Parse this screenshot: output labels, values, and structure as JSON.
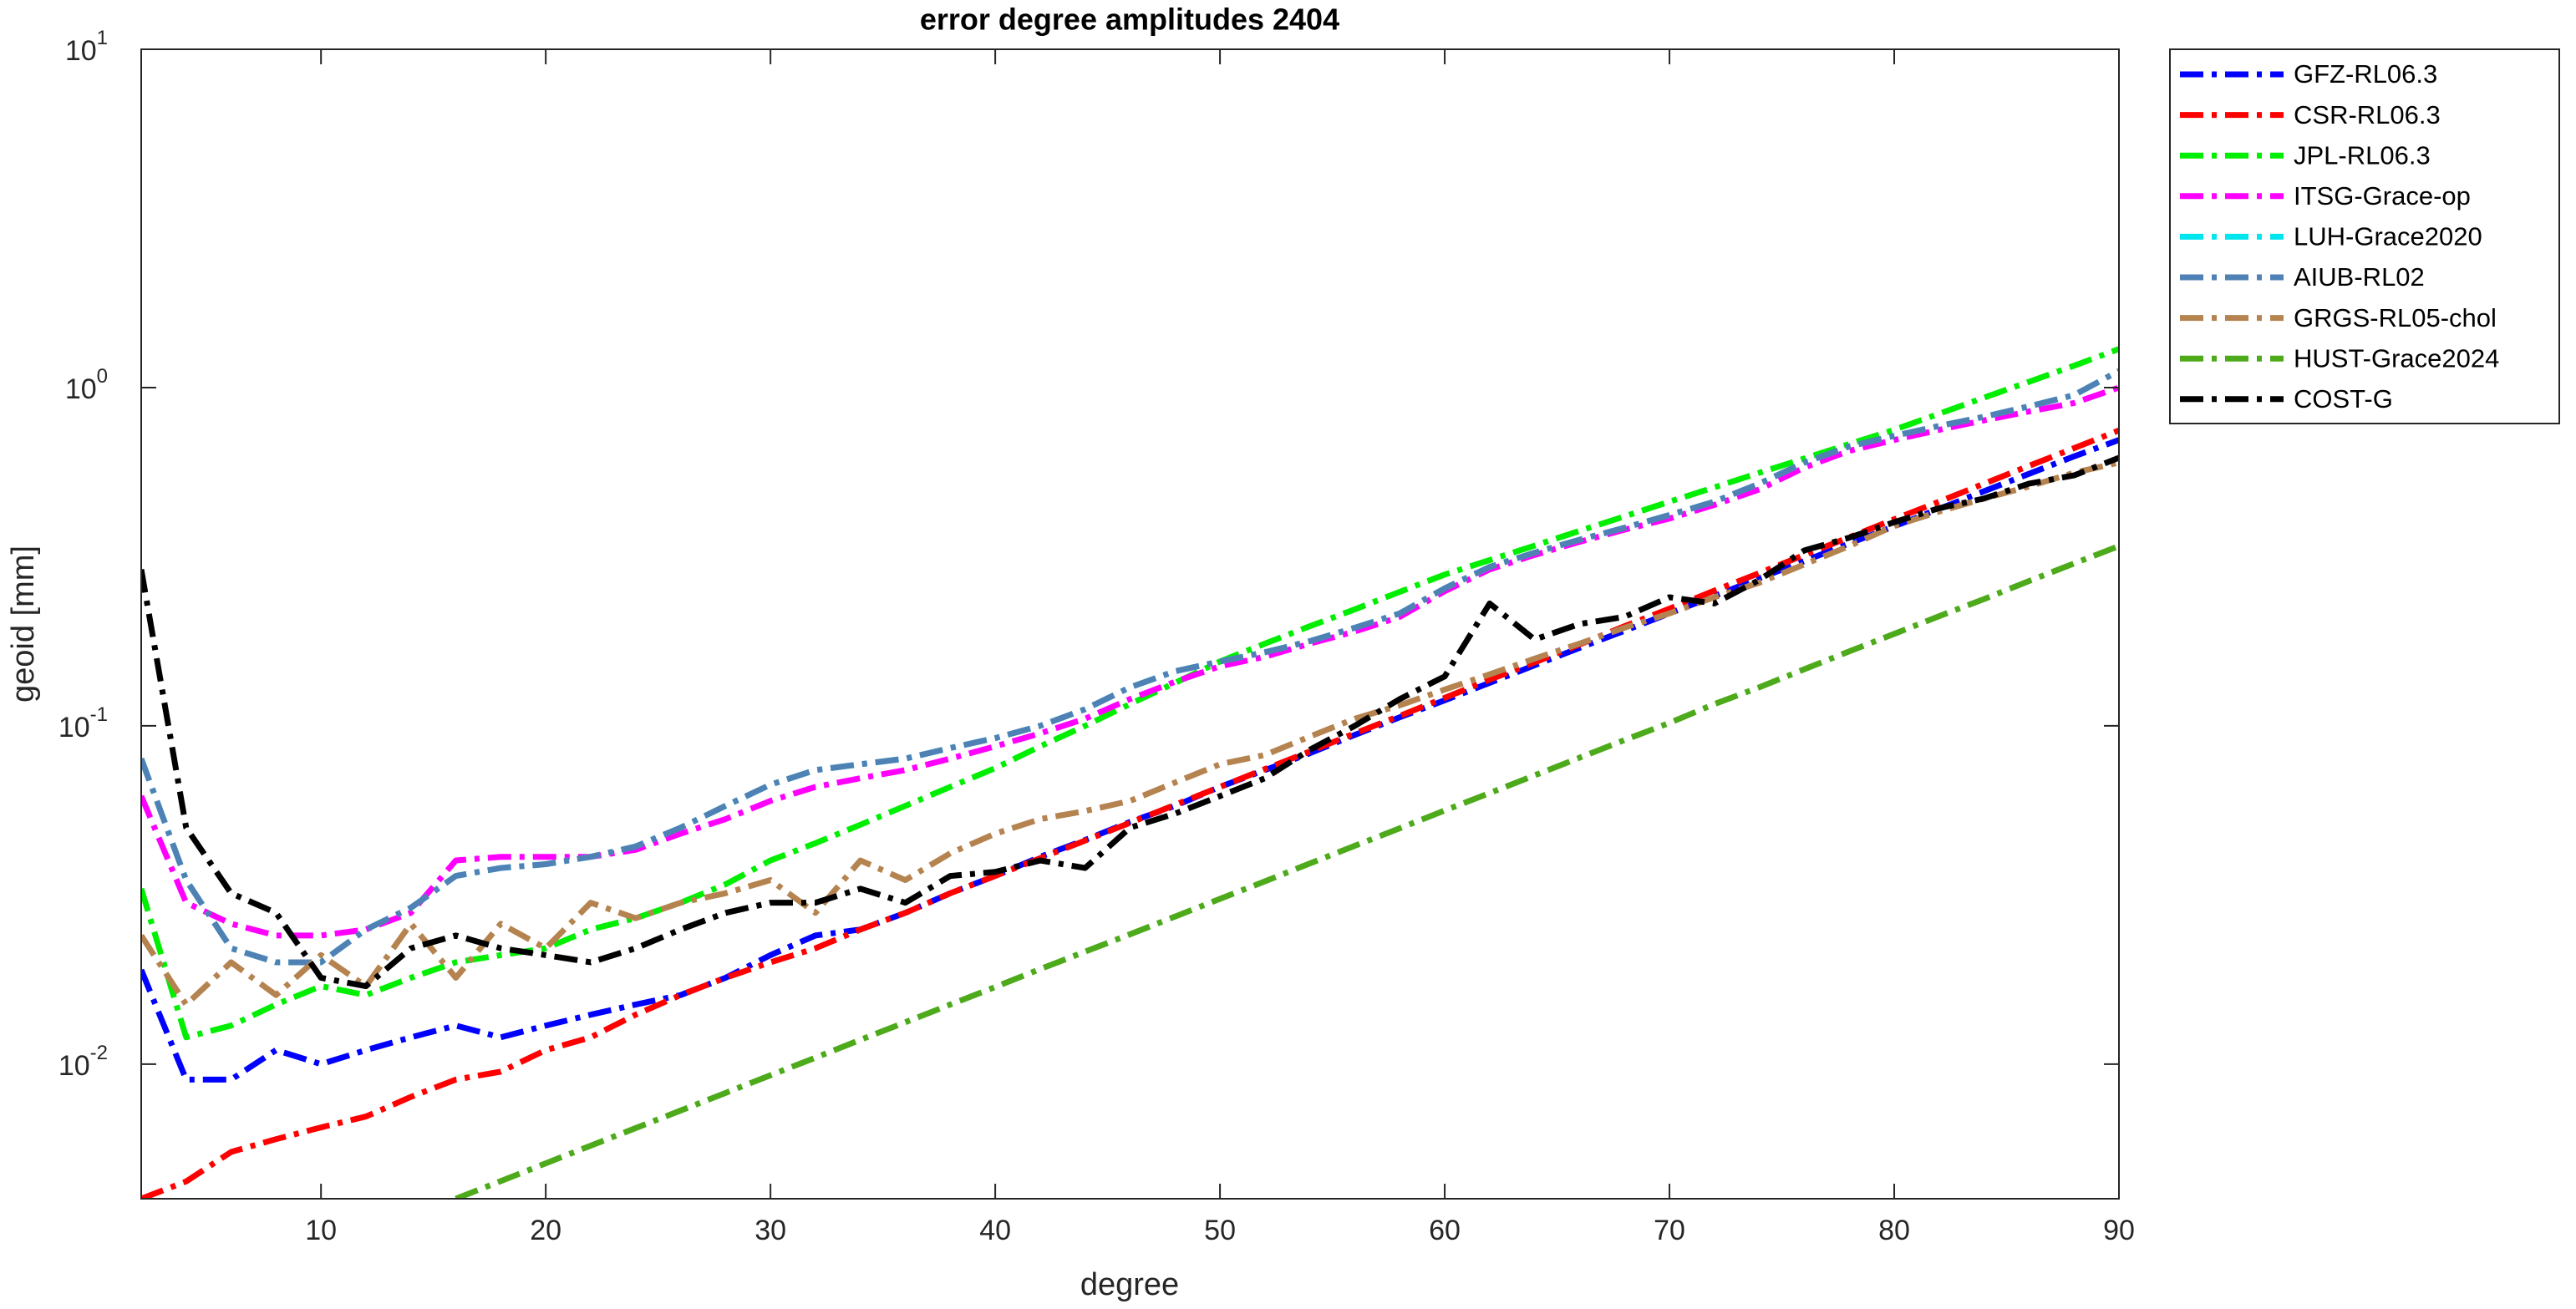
{
  "chart_data": {
    "type": "line",
    "title": "error degree amplitudes 2404",
    "xlabel": "degree",
    "ylabel": "geoid [mm]",
    "log_y": true,
    "grid": false,
    "legend": "outside-top-right",
    "xlim": [
      2,
      90
    ],
    "ylim": [
      0.004,
      10
    ],
    "xticks": [
      10,
      20,
      30,
      40,
      50,
      60,
      70,
      80,
      90
    ],
    "yticks": [
      {
        "value": 0.01,
        "label": "10^{-2}"
      },
      {
        "value": 0.1,
        "label": "10^{-1}"
      },
      {
        "value": 1,
        "label": "10^{0}"
      },
      {
        "value": 10,
        "label": "10^{1}"
      }
    ],
    "x": [
      2,
      4,
      6,
      8,
      10,
      12,
      14,
      16,
      18,
      20,
      22,
      24,
      26,
      28,
      30,
      32,
      34,
      36,
      38,
      40,
      42,
      44,
      46,
      48,
      50,
      52,
      54,
      56,
      58,
      60,
      62,
      64,
      66,
      68,
      70,
      72,
      74,
      76,
      78,
      80,
      82,
      84,
      86,
      88,
      90
    ],
    "series": [
      {
        "name": "GFZ-RL06.3",
        "color": "#0000ff",
        "values": [
          0.019,
          0.009,
          0.009,
          0.011,
          0.01,
          0.011,
          0.012,
          0.013,
          0.012,
          0.013,
          0.014,
          0.015,
          0.016,
          0.018,
          0.021,
          0.024,
          0.025,
          0.028,
          0.032,
          0.036,
          0.041,
          0.046,
          0.052,
          0.058,
          0.066,
          0.074,
          0.083,
          0.094,
          0.106,
          0.119,
          0.134,
          0.151,
          0.17,
          0.191,
          0.215,
          0.242,
          0.273,
          0.307,
          0.346,
          0.389,
          0.438,
          0.494,
          0.556,
          0.626,
          0.7
        ]
      },
      {
        "name": "CSR-RL06.3",
        "color": "#ff0000",
        "values": [
          0.004,
          0.0045,
          0.0055,
          0.006,
          0.0065,
          0.007,
          0.008,
          0.009,
          0.0095,
          0.011,
          0.012,
          0.014,
          0.016,
          0.018,
          0.02,
          0.022,
          0.025,
          0.028,
          0.032,
          0.036,
          0.0406,
          0.0458,
          0.0517,
          0.0584,
          0.066,
          0.0745,
          0.084,
          0.095,
          0.107,
          0.121,
          0.137,
          0.154,
          0.174,
          0.197,
          0.222,
          0.251,
          0.283,
          0.32,
          0.361,
          0.408,
          0.46,
          0.52,
          0.587,
          0.662,
          0.747
        ]
      },
      {
        "name": "JPL-RL06.3",
        "color": "#00ee00",
        "values": [
          0.033,
          0.012,
          0.013,
          0.015,
          0.017,
          0.016,
          0.018,
          0.02,
          0.021,
          0.022,
          0.025,
          0.027,
          0.03,
          0.034,
          0.04,
          0.045,
          0.051,
          0.058,
          0.066,
          0.075,
          0.087,
          0.1,
          0.116,
          0.134,
          0.155,
          0.175,
          0.197,
          0.221,
          0.249,
          0.28,
          0.309,
          0.341,
          0.377,
          0.416,
          0.46,
          0.507,
          0.56,
          0.617,
          0.681,
          0.75,
          0.837,
          0.934,
          1.04,
          1.16,
          1.3
        ]
      },
      {
        "name": "ITSG-Grace-op",
        "color": "#ff00ff",
        "values": [
          0.062,
          0.03,
          0.026,
          0.024,
          0.024,
          0.025,
          0.028,
          0.04,
          0.041,
          0.041,
          0.041,
          0.043,
          0.048,
          0.053,
          0.06,
          0.066,
          0.07,
          0.074,
          0.08,
          0.087,
          0.095,
          0.105,
          0.12,
          0.135,
          0.15,
          0.16,
          0.175,
          0.19,
          0.21,
          0.25,
          0.29,
          0.32,
          0.35,
          0.38,
          0.41,
          0.45,
          0.5,
          0.58,
          0.65,
          0.7,
          0.75,
          0.8,
          0.85,
          0.9,
          1.0
        ]
      },
      {
        "name": "LUH-Grace2020",
        "color": "#00e5ee",
        "values": [
          0.08,
          0.035,
          0.022,
          0.02,
          0.02,
          0.025,
          0.029,
          0.036,
          0.038,
          0.039,
          0.041,
          0.044,
          0.05,
          0.058,
          0.067,
          0.074,
          0.077,
          0.08,
          0.086,
          0.092,
          0.1,
          0.112,
          0.13,
          0.145,
          0.155,
          0.165,
          0.178,
          0.195,
          0.215,
          0.255,
          0.295,
          0.325,
          0.355,
          0.385,
          0.42,
          0.46,
          0.52,
          0.6,
          0.67,
          0.72,
          0.77,
          0.82,
          0.88,
          0.95,
          1.12
        ]
      },
      {
        "name": "AIUB-RL02",
        "color": "#4f81b4",
        "values": [
          0.08,
          0.035,
          0.022,
          0.02,
          0.02,
          0.025,
          0.029,
          0.036,
          0.038,
          0.039,
          0.041,
          0.044,
          0.05,
          0.058,
          0.067,
          0.074,
          0.077,
          0.08,
          0.086,
          0.092,
          0.1,
          0.112,
          0.13,
          0.145,
          0.155,
          0.165,
          0.178,
          0.195,
          0.215,
          0.255,
          0.295,
          0.325,
          0.355,
          0.385,
          0.42,
          0.46,
          0.52,
          0.6,
          0.67,
          0.72,
          0.77,
          0.82,
          0.88,
          0.95,
          1.12
        ]
      },
      {
        "name": "GRGS-RL05-chol",
        "color": "#b5834f",
        "values": [
          0.024,
          0.015,
          0.02,
          0.016,
          0.021,
          0.017,
          0.026,
          0.018,
          0.026,
          0.022,
          0.03,
          0.027,
          0.03,
          0.032,
          0.035,
          0.028,
          0.04,
          0.035,
          0.042,
          0.048,
          0.053,
          0.056,
          0.06,
          0.068,
          0.077,
          0.082,
          0.093,
          0.105,
          0.115,
          0.128,
          0.142,
          0.158,
          0.175,
          0.195,
          0.215,
          0.24,
          0.265,
          0.3,
          0.34,
          0.39,
          0.43,
          0.47,
          0.51,
          0.56,
          0.6
        ]
      },
      {
        "name": "HUST-Grace2024",
        "color": "#4daa1a",
        "values": [
          null,
          null,
          null,
          null,
          null,
          null,
          null,
          0.004,
          0.00451,
          0.00509,
          0.00574,
          0.00647,
          0.00729,
          0.00822,
          0.00927,
          0.01045,
          0.0118,
          0.0133,
          0.015,
          0.0169,
          0.0191,
          0.0215,
          0.0242,
          0.0273,
          0.0308,
          0.0347,
          0.0392,
          0.0442,
          0.0498,
          0.0562,
          0.0633,
          0.0714,
          0.0805,
          0.0908,
          0.102,
          0.116,
          0.13,
          0.147,
          0.166,
          0.187,
          0.211,
          0.237,
          0.268,
          0.302,
          0.34
        ]
      },
      {
        "name": "COST-G",
        "color": "#000000",
        "values": [
          0.29,
          0.05,
          0.032,
          0.028,
          0.018,
          0.017,
          0.022,
          0.024,
          0.022,
          0.021,
          0.02,
          0.022,
          0.025,
          0.028,
          0.03,
          0.03,
          0.033,
          0.03,
          0.036,
          0.037,
          0.04,
          0.038,
          0.05,
          0.055,
          0.062,
          0.07,
          0.085,
          0.1,
          0.12,
          0.14,
          0.23,
          0.18,
          0.2,
          0.21,
          0.24,
          0.23,
          0.27,
          0.33,
          0.36,
          0.4,
          0.44,
          0.47,
          0.52,
          0.55,
          0.62
        ]
      }
    ]
  }
}
